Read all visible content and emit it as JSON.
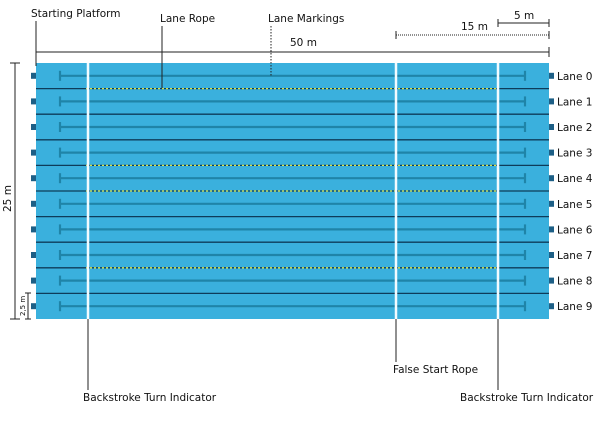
{
  "labels": {
    "starting_platform": "Starting Platform",
    "lane_rope": "Lane Rope",
    "lane_markings": "Lane Markings",
    "length_50m": "50 m",
    "length_15m": "15 m",
    "length_5m": "5 m",
    "width_25m": "25 m",
    "lane_width": "2,5 m",
    "false_start_rope": "False Start Rope",
    "backstroke_left": "Backstroke Turn Indicator",
    "backstroke_right": "Backstroke Turn Indicator"
  },
  "lanes": [
    "Lane 0",
    "Lane 1",
    "Lane 2",
    "Lane 3",
    "Lane 4",
    "Lane 5",
    "Lane 6",
    "Lane 7",
    "Lane 8",
    "Lane 9"
  ],
  "colors": {
    "water": "#3ab0dd",
    "lane_marking": "#1f84a8",
    "rope_dark": "#0e3c5a",
    "rope_yellow": "#d8e24a",
    "indicator": "#f2fbff",
    "platform": "#1d5f86"
  }
}
